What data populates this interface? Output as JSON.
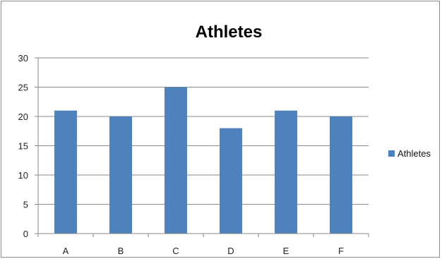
{
  "chart_data": {
    "type": "bar",
    "title": "Athletes",
    "xlabel": "",
    "ylabel": "",
    "categories": [
      "A",
      "B",
      "C",
      "D",
      "E",
      "F"
    ],
    "series": [
      {
        "name": "Athletes",
        "values": [
          21,
          20,
          25,
          18,
          21,
          20
        ],
        "color": "#4f81bd"
      }
    ],
    "ylim": [
      0,
      30
    ],
    "yticks": [
      0,
      5,
      10,
      15,
      20,
      25,
      30
    ],
    "grid": true,
    "legend_position": "right"
  }
}
